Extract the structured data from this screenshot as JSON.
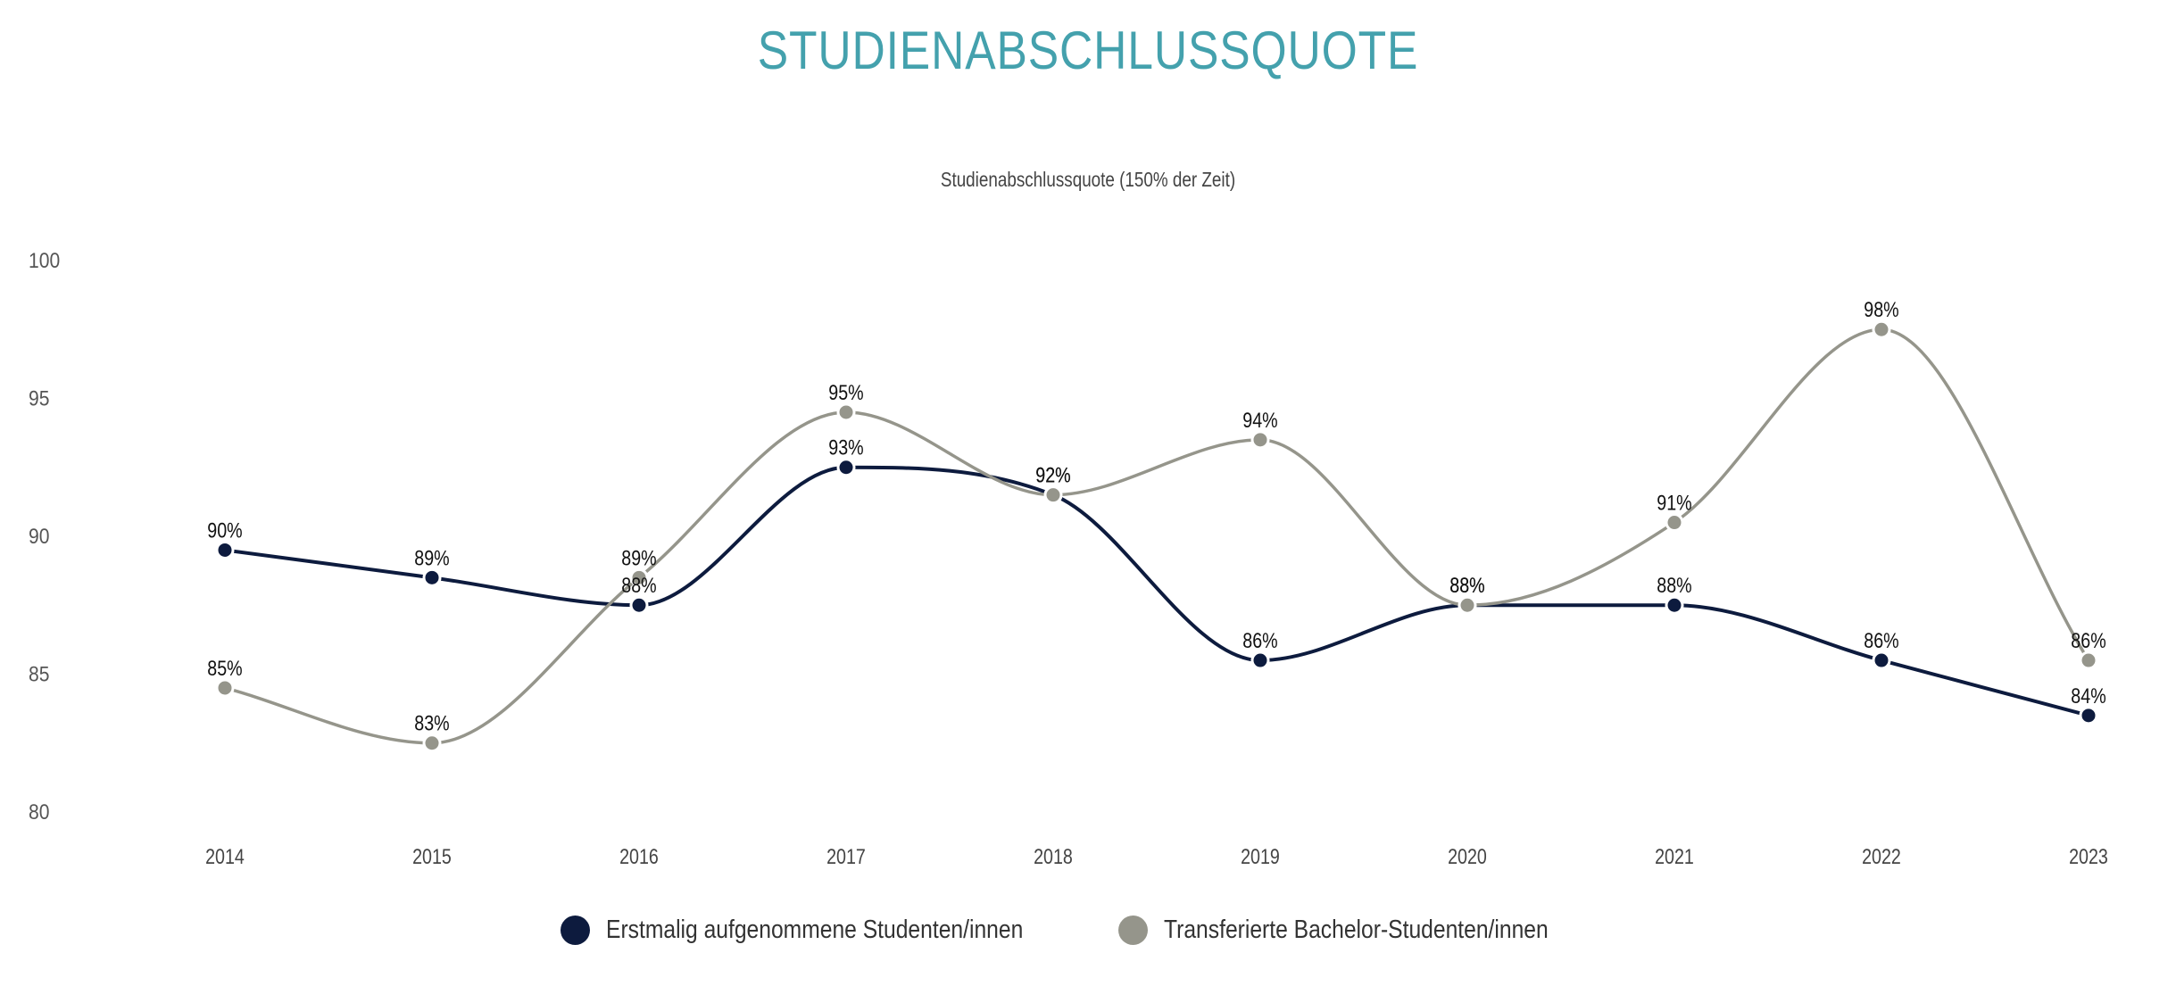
{
  "header": {
    "title": "STUDIENABSCHLUSSQUOTE",
    "subtitle": "Studienabschlussquote (150% der Zeit)"
  },
  "colors": {
    "title": "#44a1ad",
    "series_1": "#0d1b3e",
    "series_2": "#95958b"
  },
  "legend": {
    "items": [
      {
        "label": "Erstmalig aufgenommene Studenten/innen",
        "color": "#0d1b3e"
      },
      {
        "label": "Transferierte Bachelor-Studenten/innen",
        "color": "#95958b"
      }
    ]
  },
  "chart_data": {
    "type": "line",
    "title": "STUDIENABSCHLUSSQUOTE",
    "subtitle": "Studienabschlussquote (150% der Zeit)",
    "xlabel": "",
    "ylabel": "",
    "categories": [
      "2014",
      "2015",
      "2016",
      "2017",
      "2018",
      "2019",
      "2020",
      "2021",
      "2022",
      "2023"
    ],
    "yticks": [
      100,
      95,
      90,
      85,
      80
    ],
    "ylim": [
      80,
      100
    ],
    "grid": false,
    "legend_position": "bottom",
    "smooth": true,
    "series": [
      {
        "name": "Erstmalig aufgenommene Studenten/innen",
        "color": "#0d1b3e",
        "values": [
          89.5,
          88.5,
          87.5,
          92.5,
          91.5,
          85.5,
          87.5,
          87.5,
          85.5,
          83.5
        ],
        "labels": [
          "90%",
          "89%",
          "88%",
          "93%",
          "92%",
          "86%",
          "88%",
          "88%",
          "86%",
          "84%"
        ]
      },
      {
        "name": "Transferierte Bachelor-Studenten/innen",
        "color": "#95958b",
        "values": [
          84.5,
          82.5,
          88.5,
          94.5,
          91.5,
          93.5,
          87.5,
          90.5,
          97.5,
          85.5
        ],
        "labels": [
          "85%",
          "83%",
          "89%",
          "95%",
          "92%",
          "94%",
          "88%",
          "91%",
          "98%",
          "86%"
        ]
      }
    ]
  }
}
